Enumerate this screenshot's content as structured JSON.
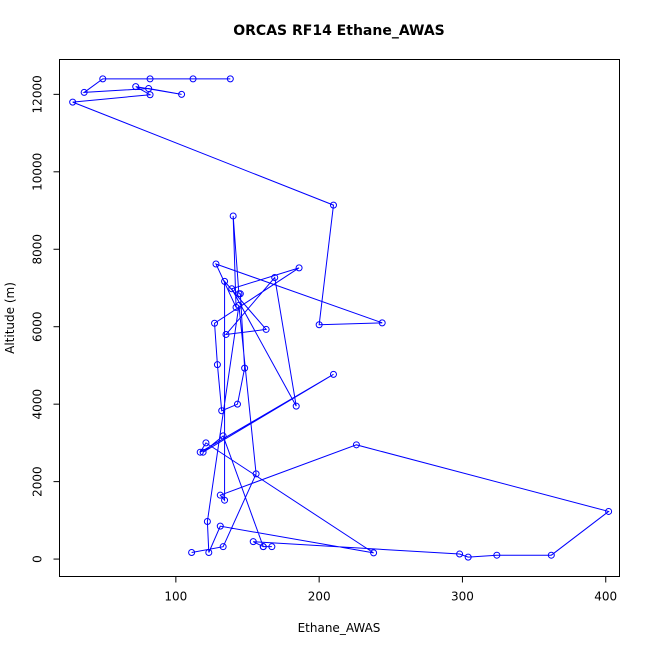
{
  "chart_data": {
    "type": "scatter",
    "title": "ORCAS RF14 Ethane_AWAS",
    "xlabel": "Ethane_AWAS",
    "ylabel": "Altitude (m)",
    "xlim": [
      18.8,
      409.6
    ],
    "ylim": [
      -450,
      12900
    ],
    "xticks": [
      100,
      200,
      300,
      400
    ],
    "yticks": [
      0,
      2000,
      4000,
      6000,
      8000,
      10000,
      12000
    ],
    "color": "#0000ff",
    "series": [
      {
        "x": [
          138,
          112,
          82,
          49,
          36,
          81,
          104,
          72,
          82,
          28,
          210,
          200,
          244,
          128,
          142,
          140,
          144,
          145,
          148,
          143,
          132,
          129,
          127,
          186,
          139,
          184,
          169,
          135,
          163,
          134,
          134,
          131,
          226,
          402,
          362,
          324,
          304,
          298,
          154,
          161,
          167,
          161,
          133,
          119,
          210,
          117,
          121,
          238,
          131,
          123,
          122,
          144,
          156,
          133,
          111
        ],
        "y": [
          12400,
          12400,
          12400,
          12400,
          12050,
          12150,
          12000,
          12200,
          11990,
          11800,
          9140,
          6050,
          6100,
          7620,
          6500,
          8860,
          6850,
          6850,
          4930,
          4000,
          3830,
          5020,
          6090,
          7520,
          6980,
          3950,
          7270,
          5800,
          5930,
          7170,
          1520,
          1650,
          2950,
          1230,
          100,
          100,
          50,
          130,
          450,
          320,
          320,
          320,
          3180,
          2760,
          4770,
          2760,
          3000,
          160,
          850,
          170,
          970,
          6550,
          2200,
          320,
          170
        ]
      }
    ]
  }
}
